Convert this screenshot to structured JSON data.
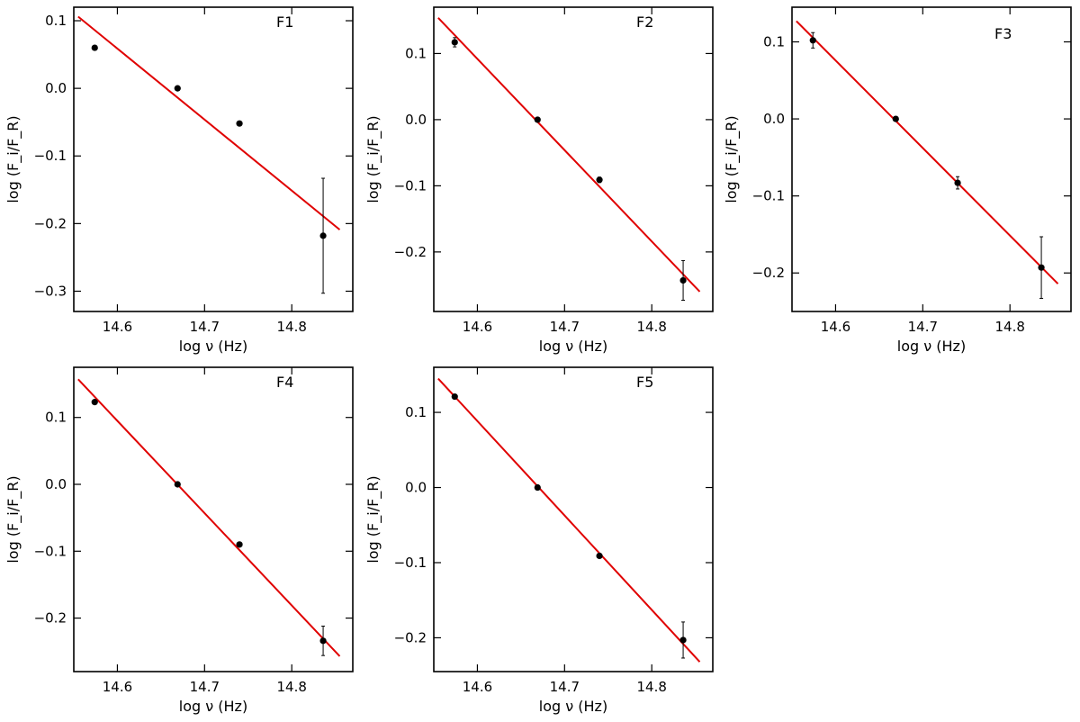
{
  "chart_data": [
    {
      "type": "scatter",
      "title": "F1",
      "xlabel": "log ν (Hz)",
      "ylabel": "log (F_i/F_R)",
      "xlim": [
        14.55,
        14.87
      ],
      "ylim": [
        -0.33,
        0.12
      ],
      "xticks": [
        14.6,
        14.7,
        14.8
      ],
      "xtick_labels": [
        "14.6",
        "14.7",
        "14.8"
      ],
      "yticks": [
        0.1,
        0.0,
        -0.1,
        -0.2,
        -0.3
      ],
      "ytick_labels": [
        "0.1",
        "0.0",
        "−0.1",
        "−0.2",
        "−0.3"
      ],
      "points": [
        {
          "x": 14.574,
          "y": 0.06,
          "err": 0.0
        },
        {
          "x": 14.669,
          "y": 0.0,
          "err": 0.0
        },
        {
          "x": 14.74,
          "y": -0.052,
          "err": 0.0
        },
        {
          "x": 14.836,
          "y": -0.218,
          "err": 0.085
        }
      ],
      "fit": {
        "x": [
          14.555,
          14.855
        ],
        "y": [
          0.106,
          -0.209
        ]
      },
      "grid": false
    },
    {
      "type": "scatter",
      "title": "F2",
      "xlabel": "log ν (Hz)",
      "ylabel": "log (F_i/F_R)",
      "xlim": [
        14.55,
        14.87
      ],
      "ylim": [
        -0.29,
        0.17
      ],
      "xticks": [
        14.6,
        14.7,
        14.8
      ],
      "xtick_labels": [
        "14.6",
        "14.7",
        "14.8"
      ],
      "yticks": [
        0.1,
        0.0,
        -0.1,
        -0.2
      ],
      "ytick_labels": [
        "0.1",
        "0.0",
        "−0.1",
        "−0.2"
      ],
      "points": [
        {
          "x": 14.574,
          "y": 0.117,
          "err": 0.007
        },
        {
          "x": 14.669,
          "y": 0.0,
          "err": 0.0
        },
        {
          "x": 14.74,
          "y": -0.091,
          "err": 0.004
        },
        {
          "x": 14.836,
          "y": -0.243,
          "err": 0.03
        }
      ],
      "fit": {
        "x": [
          14.555,
          14.855
        ],
        "y": [
          0.154,
          -0.26
        ]
      },
      "grid": false
    },
    {
      "type": "scatter",
      "title": "F3",
      "xlabel": "log ν (Hz)",
      "ylabel": "log (F_i/F_R)",
      "xlim": [
        14.55,
        14.87
      ],
      "ylim": [
        -0.25,
        0.145
      ],
      "xticks": [
        14.6,
        14.7,
        14.8
      ],
      "xtick_labels": [
        "14.6",
        "14.7",
        "14.8"
      ],
      "yticks": [
        0.1,
        0.0,
        -0.1,
        -0.2
      ],
      "ytick_labels": [
        "0.1",
        "0.0",
        "−0.1",
        "−0.2"
      ],
      "points": [
        {
          "x": 14.574,
          "y": 0.102,
          "err": 0.01
        },
        {
          "x": 14.669,
          "y": 0.0,
          "err": 0.0
        },
        {
          "x": 14.74,
          "y": -0.083,
          "err": 0.008
        },
        {
          "x": 14.836,
          "y": -0.193,
          "err": 0.04
        }
      ],
      "fit": {
        "x": [
          14.555,
          14.855
        ],
        "y": [
          0.127,
          -0.214
        ]
      },
      "grid": false
    },
    {
      "type": "scatter",
      "title": "F4",
      "xlabel": "log ν (Hz)",
      "ylabel": "log (F_i/F_R)",
      "xlim": [
        14.55,
        14.87
      ],
      "ylim": [
        -0.28,
        0.175
      ],
      "xticks": [
        14.6,
        14.7,
        14.8
      ],
      "xtick_labels": [
        "14.6",
        "14.7",
        "14.8"
      ],
      "yticks": [
        0.1,
        0.0,
        -0.1,
        -0.2
      ],
      "ytick_labels": [
        "0.1",
        "0.0",
        "−0.1",
        "−0.2"
      ],
      "points": [
        {
          "x": 14.574,
          "y": 0.123,
          "err": 0.0
        },
        {
          "x": 14.669,
          "y": 0.0,
          "err": 0.0
        },
        {
          "x": 14.74,
          "y": -0.09,
          "err": 0.0
        },
        {
          "x": 14.836,
          "y": -0.234,
          "err": 0.022
        }
      ],
      "fit": {
        "x": [
          14.555,
          14.855
        ],
        "y": [
          0.157,
          -0.257
        ]
      },
      "grid": false
    },
    {
      "type": "scatter",
      "title": "F5",
      "xlabel": "log ν (Hz)",
      "ylabel": "log (F_i/F_R)",
      "xlim": [
        14.55,
        14.87
      ],
      "ylim": [
        -0.245,
        0.16
      ],
      "xticks": [
        14.6,
        14.7,
        14.8
      ],
      "xtick_labels": [
        "14.6",
        "14.7",
        "14.8"
      ],
      "yticks": [
        0.1,
        0.0,
        -0.1,
        -0.2
      ],
      "ytick_labels": [
        "0.1",
        "0.0",
        "−0.1",
        "−0.2"
      ],
      "points": [
        {
          "x": 14.574,
          "y": 0.121,
          "err": 0.0
        },
        {
          "x": 14.669,
          "y": 0.0,
          "err": 0.0
        },
        {
          "x": 14.74,
          "y": -0.091,
          "err": 0.0
        },
        {
          "x": 14.836,
          "y": -0.203,
          "err": 0.024
        }
      ],
      "fit": {
        "x": [
          14.555,
          14.855
        ],
        "y": [
          0.145,
          -0.232
        ]
      },
      "grid": false
    }
  ],
  "colors": {
    "fit_line": "#e00000",
    "points": "#000000"
  }
}
